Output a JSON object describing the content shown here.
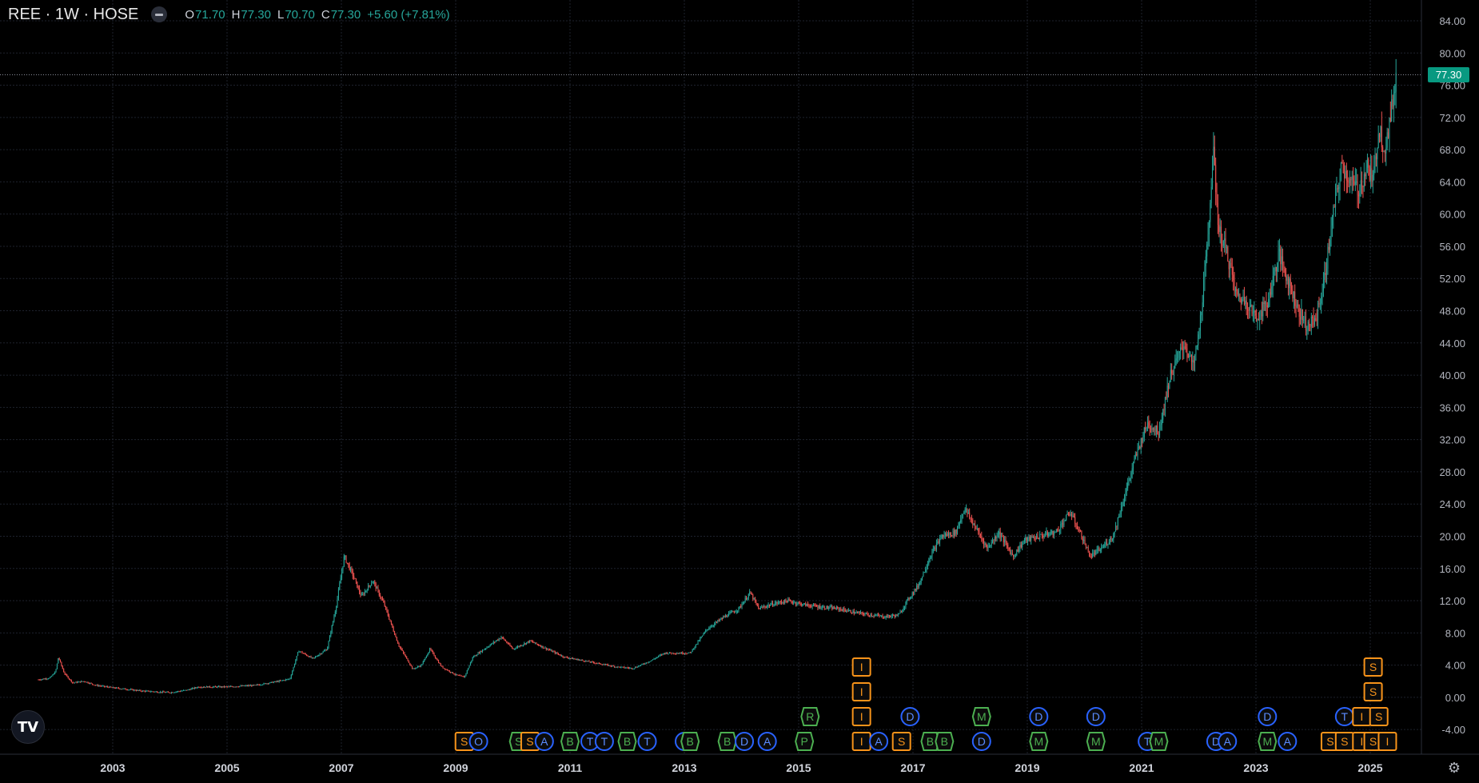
{
  "legend": {
    "symbol": "REE · 1W · HOSE",
    "o_label": "O",
    "o_value": "71.70",
    "h_label": "H",
    "h_value": "77.30",
    "l_label": "L",
    "l_value": "70.70",
    "c_label": "C",
    "c_value": "77.30",
    "change": "+5.60 (+7.81%)"
  },
  "last_price": "77.30",
  "logo": "TV",
  "colors": {
    "up": "#26a69a",
    "down": "#ef5350",
    "grid": "#1e222d",
    "price_tag": "#089981",
    "event_orange": "#f7931a",
    "event_green": "#4caf50",
    "event_blue": "#2962ff"
  },
  "chart_data": {
    "type": "candlestick",
    "ylim": [
      -6,
      86
    ],
    "y_ticks": [
      "84.00",
      "80.00",
      "76.00",
      "72.00",
      "68.00",
      "64.00",
      "60.00",
      "56.00",
      "52.00",
      "48.00",
      "44.00",
      "40.00",
      "36.00",
      "32.00",
      "28.00",
      "24.00",
      "20.00",
      "16.00",
      "12.00",
      "8.00",
      "4.00",
      "0.00",
      "-4.00"
    ],
    "x_ticks": [
      "2003",
      "2005",
      "2007",
      "2009",
      "2011",
      "2013",
      "2015",
      "2017",
      "2019",
      "2021",
      "2023",
      "2025"
    ],
    "xlim": [
      2001.7,
      2025.7
    ],
    "last_close": 77.3,
    "price_path": [
      [
        2001.7,
        2.2
      ],
      [
        2001.9,
        2.4
      ],
      [
        2002.0,
        3.2
      ],
      [
        2002.05,
        5.0
      ],
      [
        2002.15,
        3.0
      ],
      [
        2002.3,
        1.8
      ],
      [
        2002.5,
        2.0
      ],
      [
        2002.7,
        1.5
      ],
      [
        2003.0,
        1.2
      ],
      [
        2003.5,
        0.8
      ],
      [
        2004.0,
        0.6
      ],
      [
        2004.3,
        0.9
      ],
      [
        2004.5,
        1.3
      ],
      [
        2005.0,
        1.3
      ],
      [
        2005.5,
        1.5
      ],
      [
        2005.9,
        2.0
      ],
      [
        2006.1,
        2.3
      ],
      [
        2006.25,
        5.8
      ],
      [
        2006.5,
        4.8
      ],
      [
        2006.75,
        6.0
      ],
      [
        2006.9,
        11.0
      ],
      [
        2007.05,
        17.5
      ],
      [
        2007.2,
        15.2
      ],
      [
        2007.35,
        12.5
      ],
      [
        2007.55,
        14.5
      ],
      [
        2007.75,
        11.5
      ],
      [
        2008.0,
        6.5
      ],
      [
        2008.25,
        3.5
      ],
      [
        2008.4,
        4.0
      ],
      [
        2008.55,
        6.0
      ],
      [
        2008.75,
        3.8
      ],
      [
        2009.0,
        2.8
      ],
      [
        2009.15,
        2.5
      ],
      [
        2009.3,
        5.0
      ],
      [
        2009.6,
        6.5
      ],
      [
        2009.8,
        7.5
      ],
      [
        2010.0,
        6.0
      ],
      [
        2010.3,
        7.0
      ],
      [
        2010.6,
        6.0
      ],
      [
        2010.9,
        5.0
      ],
      [
        2011.2,
        4.6
      ],
      [
        2011.5,
        4.2
      ],
      [
        2011.8,
        3.8
      ],
      [
        2012.1,
        3.6
      ],
      [
        2012.4,
        4.5
      ],
      [
        2012.65,
        5.5
      ],
      [
        2012.9,
        5.5
      ],
      [
        2013.1,
        5.5
      ],
      [
        2013.4,
        8.5
      ],
      [
        2013.7,
        10.0
      ],
      [
        2013.95,
        11.0
      ],
      [
        2014.15,
        13.0
      ],
      [
        2014.3,
        11.0
      ],
      [
        2014.5,
        11.5
      ],
      [
        2014.8,
        12.0
      ],
      [
        2015.1,
        11.5
      ],
      [
        2015.4,
        11.2
      ],
      [
        2015.7,
        11.0
      ],
      [
        2016.0,
        10.5
      ],
      [
        2016.3,
        10.2
      ],
      [
        2016.5,
        10.0
      ],
      [
        2016.75,
        10.2
      ],
      [
        2016.9,
        12.0
      ],
      [
        2017.1,
        14.0
      ],
      [
        2017.3,
        17.5
      ],
      [
        2017.5,
        20.0
      ],
      [
        2017.75,
        20.5
      ],
      [
        2017.9,
        23.5
      ],
      [
        2018.1,
        21.0
      ],
      [
        2018.3,
        18.5
      ],
      [
        2018.5,
        20.5
      ],
      [
        2018.75,
        17.5
      ],
      [
        2018.95,
        19.5
      ],
      [
        2019.2,
        20.0
      ],
      [
        2019.5,
        20.5
      ],
      [
        2019.75,
        23.0
      ],
      [
        2019.95,
        20.0
      ],
      [
        2020.1,
        17.5
      ],
      [
        2020.3,
        18.5
      ],
      [
        2020.5,
        20.0
      ],
      [
        2020.7,
        25.0
      ],
      [
        2020.9,
        30.0
      ],
      [
        2021.1,
        34.0
      ],
      [
        2021.3,
        33.0
      ],
      [
        2021.5,
        40.0
      ],
      [
        2021.75,
        44.0
      ],
      [
        2021.9,
        41.0
      ],
      [
        2022.0,
        45.0
      ],
      [
        2022.15,
        56.0
      ],
      [
        2022.25,
        68.0
      ],
      [
        2022.35,
        58.0
      ],
      [
        2022.5,
        55.0
      ],
      [
        2022.65,
        50.0
      ],
      [
        2022.85,
        49.0
      ],
      [
        2023.0,
        47.0
      ],
      [
        2023.2,
        49.0
      ],
      [
        2023.4,
        55.0
      ],
      [
        2023.6,
        51.0
      ],
      [
        2023.75,
        48.0
      ],
      [
        2023.9,
        46.0
      ],
      [
        2024.05,
        47.0
      ],
      [
        2024.2,
        52.0
      ],
      [
        2024.35,
        60.0
      ],
      [
        2024.5,
        66.0
      ],
      [
        2024.65,
        64.0
      ],
      [
        2024.8,
        63.0
      ],
      [
        2024.95,
        66.0
      ],
      [
        2025.05,
        64.0
      ],
      [
        2025.15,
        71.0
      ],
      [
        2025.25,
        68.0
      ],
      [
        2025.35,
        71.7
      ],
      [
        2025.45,
        77.3
      ]
    ],
    "event_markers": [
      {
        "x": 2009.15,
        "row": 0,
        "kind": "box",
        "color": "orange",
        "letter": "S"
      },
      {
        "x": 2009.4,
        "row": 0,
        "kind": "circle",
        "color": "blue",
        "letter": "O"
      },
      {
        "x": 2010.1,
        "row": 0,
        "kind": "box",
        "color": "green",
        "letter": "S"
      },
      {
        "x": 2010.3,
        "row": 0,
        "kind": "box",
        "color": "orange",
        "letter": "S"
      },
      {
        "x": 2010.55,
        "row": 0,
        "kind": "circle",
        "color": "blue",
        "letter": "A"
      },
      {
        "x": 2011.0,
        "row": 0,
        "kind": "box",
        "color": "green",
        "letter": "B"
      },
      {
        "x": 2011.35,
        "row": 0,
        "kind": "circle",
        "color": "blue",
        "letter": "T"
      },
      {
        "x": 2011.6,
        "row": 0,
        "kind": "circle",
        "color": "blue",
        "letter": "T"
      },
      {
        "x": 2012.0,
        "row": 0,
        "kind": "box",
        "color": "green",
        "letter": "B"
      },
      {
        "x": 2012.35,
        "row": 0,
        "kind": "circle",
        "color": "blue",
        "letter": "T"
      },
      {
        "x": 2013.0,
        "row": 0,
        "kind": "circle",
        "color": "blue",
        "letter": "B"
      },
      {
        "x": 2013.1,
        "row": 0,
        "kind": "box",
        "color": "green",
        "letter": "B"
      },
      {
        "x": 2013.75,
        "row": 0,
        "kind": "box",
        "color": "green",
        "letter": "B"
      },
      {
        "x": 2014.05,
        "row": 0,
        "kind": "circle",
        "color": "blue",
        "letter": "D"
      },
      {
        "x": 2014.45,
        "row": 0,
        "kind": "circle",
        "color": "blue",
        "letter": "A"
      },
      {
        "x": 2015.1,
        "row": 0,
        "kind": "box",
        "color": "green",
        "letter": "P"
      },
      {
        "x": 2015.2,
        "row": 1,
        "kind": "box",
        "color": "green",
        "letter": "R"
      },
      {
        "x": 2016.1,
        "row": 0,
        "kind": "box",
        "color": "orange",
        "letter": "I"
      },
      {
        "x": 2016.1,
        "row": 1,
        "kind": "box",
        "color": "orange",
        "letter": "I"
      },
      {
        "x": 2016.1,
        "row": 2,
        "kind": "box",
        "color": "orange",
        "letter": "I"
      },
      {
        "x": 2016.1,
        "row": 3,
        "kind": "box",
        "color": "orange",
        "letter": "I"
      },
      {
        "x": 2016.4,
        "row": 0,
        "kind": "circle",
        "color": "blue",
        "letter": "A"
      },
      {
        "x": 2016.8,
        "row": 0,
        "kind": "box",
        "color": "orange",
        "letter": "S"
      },
      {
        "x": 2017.3,
        "row": 0,
        "kind": "box",
        "color": "green",
        "letter": "B"
      },
      {
        "x": 2017.55,
        "row": 0,
        "kind": "box",
        "color": "green",
        "letter": "B"
      },
      {
        "x": 2016.95,
        "row": 1,
        "kind": "circle",
        "color": "blue",
        "letter": "D"
      },
      {
        "x": 2018.2,
        "row": 0,
        "kind": "circle",
        "color": "blue",
        "letter": "D"
      },
      {
        "x": 2018.2,
        "row": 1,
        "kind": "box",
        "color": "green",
        "letter": "M"
      },
      {
        "x": 2019.2,
        "row": 0,
        "kind": "box",
        "color": "green",
        "letter": "M"
      },
      {
        "x": 2019.2,
        "row": 1,
        "kind": "circle",
        "color": "blue",
        "letter": "D"
      },
      {
        "x": 2020.2,
        "row": 0,
        "kind": "box",
        "color": "green",
        "letter": "M"
      },
      {
        "x": 2020.2,
        "row": 1,
        "kind": "circle",
        "color": "blue",
        "letter": "D"
      },
      {
        "x": 2021.1,
        "row": 0,
        "kind": "circle",
        "color": "blue",
        "letter": "T"
      },
      {
        "x": 2021.3,
        "row": 0,
        "kind": "box",
        "color": "green",
        "letter": "M"
      },
      {
        "x": 2022.3,
        "row": 0,
        "kind": "circle",
        "color": "blue",
        "letter": "D"
      },
      {
        "x": 2022.5,
        "row": 0,
        "kind": "circle",
        "color": "blue",
        "letter": "A"
      },
      {
        "x": 2023.2,
        "row": 0,
        "kind": "box",
        "color": "green",
        "letter": "M"
      },
      {
        "x": 2023.55,
        "row": 0,
        "kind": "circle",
        "color": "blue",
        "letter": "A"
      },
      {
        "x": 2023.2,
        "row": 1,
        "kind": "circle",
        "color": "blue",
        "letter": "D"
      },
      {
        "x": 2024.3,
        "row": 0,
        "kind": "box",
        "color": "orange",
        "letter": "S"
      },
      {
        "x": 2024.55,
        "row": 0,
        "kind": "box",
        "color": "orange",
        "letter": "S"
      },
      {
        "x": 2024.85,
        "row": 0,
        "kind": "box",
        "color": "orange",
        "letter": "I"
      },
      {
        "x": 2025.05,
        "row": 0,
        "kind": "box",
        "color": "orange",
        "letter": "S"
      },
      {
        "x": 2025.3,
        "row": 0,
        "kind": "box",
        "color": "orange",
        "letter": "I"
      },
      {
        "x": 2024.55,
        "row": 1,
        "kind": "circle",
        "color": "blue",
        "letter": "T"
      },
      {
        "x": 2024.85,
        "row": 1,
        "kind": "box",
        "color": "orange",
        "letter": "I"
      },
      {
        "x": 2025.15,
        "row": 1,
        "kind": "box",
        "color": "orange",
        "letter": "S"
      },
      {
        "x": 2025.05,
        "row": 2,
        "kind": "box",
        "color": "orange",
        "letter": "S"
      },
      {
        "x": 2025.05,
        "row": 3,
        "kind": "box",
        "color": "orange",
        "letter": "S"
      }
    ]
  }
}
